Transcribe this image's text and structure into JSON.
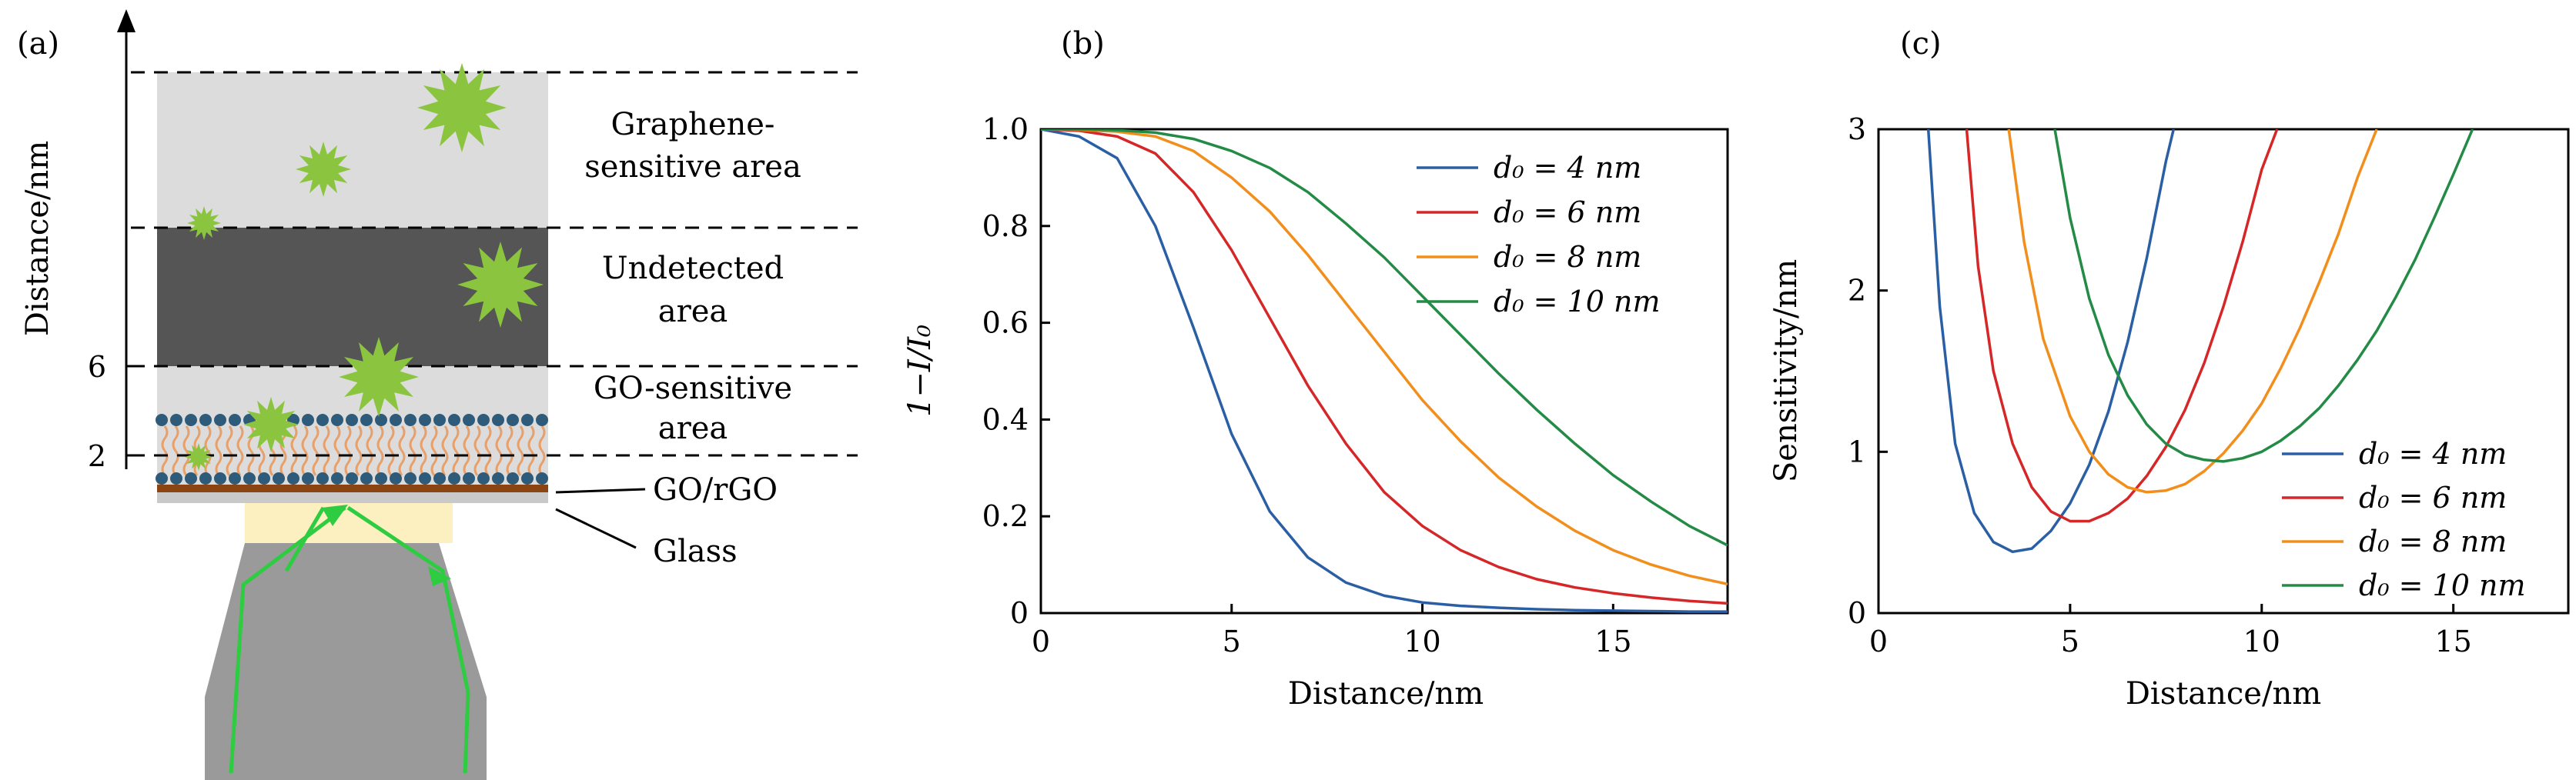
{
  "panel_a": {
    "tag": "(a)",
    "axis_label": "Distance/nm",
    "axis_ticks": [
      "6",
      "2"
    ],
    "regions": [
      {
        "label_lines": [
          "Graphene-",
          "sensitive area"
        ],
        "fill": "#dcdcdc"
      },
      {
        "label_lines": [
          "Undetected",
          "area"
        ],
        "fill": "#555555"
      },
      {
        "label_lines": [
          "GO-sensitive",
          "area"
        ],
        "fill": "#dcdcdc"
      }
    ],
    "callouts": [
      "GO/rGO",
      "Glass"
    ],
    "colors": {
      "particle": "#8bc53f",
      "ray": "#2ecc40",
      "lipid_head": "#2f5b7a",
      "lipid_tail": "#e8a06a",
      "go_layer": "#8b4513",
      "glass": "#c9c9c9",
      "objective": "#9a9a9a",
      "light": "#fcefc0"
    }
  },
  "chart_data": [
    {
      "panel": "(b)",
      "type": "line",
      "xlabel": "Distance/nm",
      "ylabel": "1−I/I₀",
      "xlim": [
        0,
        18
      ],
      "ylim": [
        0,
        1.0
      ],
      "xticks": [
        0,
        5,
        10,
        15
      ],
      "yticks": [
        0,
        0.2,
        0.4,
        0.6,
        0.8,
        1.0
      ],
      "ytick_labels": [
        "0",
        "0.2",
        "0.4",
        "0.6",
        "0.8",
        "1.0"
      ],
      "legend_position": "top-right",
      "x": [
        0,
        1,
        2,
        3,
        4,
        5,
        6,
        7,
        8,
        9,
        10,
        11,
        12,
        13,
        14,
        15,
        16,
        17,
        18
      ],
      "series": [
        {
          "name": "d₀ = 4 nm",
          "color": "#2b5fa5",
          "values": [
            1.0,
            0.985,
            0.94,
            0.8,
            0.59,
            0.37,
            0.21,
            0.115,
            0.063,
            0.036,
            0.022,
            0.015,
            0.011,
            0.008,
            0.006,
            0.005,
            0.004,
            0.003,
            0.003
          ]
        },
        {
          "name": "d₀ = 6 nm",
          "color": "#d62728",
          "values": [
            1.0,
            0.997,
            0.985,
            0.95,
            0.87,
            0.75,
            0.61,
            0.47,
            0.35,
            0.25,
            0.18,
            0.13,
            0.095,
            0.07,
            0.053,
            0.041,
            0.032,
            0.025,
            0.02
          ]
        },
        {
          "name": "d₀ = 8 nm",
          "color": "#f28e1c",
          "values": [
            1.0,
            0.999,
            0.995,
            0.985,
            0.955,
            0.9,
            0.83,
            0.74,
            0.64,
            0.54,
            0.44,
            0.355,
            0.28,
            0.22,
            0.17,
            0.13,
            0.1,
            0.077,
            0.06
          ]
        },
        {
          "name": "d₀ = 10 nm",
          "color": "#238b45",
          "values": [
            1.0,
            1.0,
            0.998,
            0.993,
            0.98,
            0.955,
            0.92,
            0.87,
            0.805,
            0.735,
            0.655,
            0.575,
            0.495,
            0.42,
            0.35,
            0.285,
            0.23,
            0.18,
            0.14
          ]
        }
      ]
    },
    {
      "panel": "(c)",
      "type": "line",
      "xlabel": "Distance/nm",
      "ylabel": "Sensitivity/nm",
      "xlim": [
        0,
        18
      ],
      "ylim": [
        0,
        3
      ],
      "xticks": [
        0,
        5,
        10,
        15
      ],
      "yticks": [
        0,
        1,
        2,
        3
      ],
      "ytick_labels": [
        "0",
        "1",
        "2",
        "3"
      ],
      "legend_position": "bottom-right",
      "series": [
        {
          "name": "d₀ = 4 nm",
          "color": "#2b5fa5",
          "x": [
            1.3,
            1.6,
            2.0,
            2.5,
            3.0,
            3.5,
            4.0,
            4.5,
            5.0,
            5.5,
            6.0,
            6.5,
            7.0,
            7.5,
            7.7
          ],
          "values": [
            3.0,
            1.9,
            1.05,
            0.62,
            0.44,
            0.38,
            0.4,
            0.51,
            0.68,
            0.92,
            1.25,
            1.68,
            2.2,
            2.8,
            3.0
          ]
        },
        {
          "name": "d₀ = 6 nm",
          "color": "#d62728",
          "x": [
            2.3,
            2.6,
            3.0,
            3.5,
            4.0,
            4.5,
            5.0,
            5.5,
            6.0,
            6.5,
            7.0,
            7.5,
            8.0,
            8.5,
            9.0,
            9.5,
            10.0,
            10.4
          ],
          "values": [
            3.0,
            2.15,
            1.5,
            1.05,
            0.78,
            0.63,
            0.57,
            0.57,
            0.62,
            0.71,
            0.85,
            1.03,
            1.26,
            1.55,
            1.9,
            2.3,
            2.75,
            3.0
          ]
        },
        {
          "name": "d₀ = 8 nm",
          "color": "#f28e1c",
          "x": [
            3.4,
            3.8,
            4.3,
            5.0,
            5.5,
            6.0,
            6.5,
            7.0,
            7.5,
            8.0,
            8.5,
            9.0,
            9.5,
            10.0,
            10.5,
            11.0,
            11.5,
            12.0,
            12.5,
            13.0
          ],
          "values": [
            3.0,
            2.3,
            1.7,
            1.22,
            1.0,
            0.86,
            0.78,
            0.75,
            0.76,
            0.8,
            0.88,
            0.99,
            1.13,
            1.3,
            1.52,
            1.77,
            2.05,
            2.35,
            2.7,
            3.0
          ]
        },
        {
          "name": "d₀ = 10 nm",
          "color": "#238b45",
          "x": [
            4.6,
            5.0,
            5.5,
            6.0,
            6.5,
            7.0,
            7.5,
            8.0,
            8.5,
            9.0,
            9.5,
            10.0,
            10.5,
            11.0,
            11.5,
            12.0,
            12.5,
            13.0,
            13.5,
            14.0,
            14.5,
            15.0,
            15.5
          ],
          "values": [
            3.0,
            2.45,
            1.95,
            1.6,
            1.35,
            1.17,
            1.05,
            0.98,
            0.95,
            0.94,
            0.96,
            1.0,
            1.07,
            1.16,
            1.27,
            1.41,
            1.57,
            1.75,
            1.96,
            2.19,
            2.45,
            2.72,
            3.0
          ]
        }
      ]
    }
  ]
}
